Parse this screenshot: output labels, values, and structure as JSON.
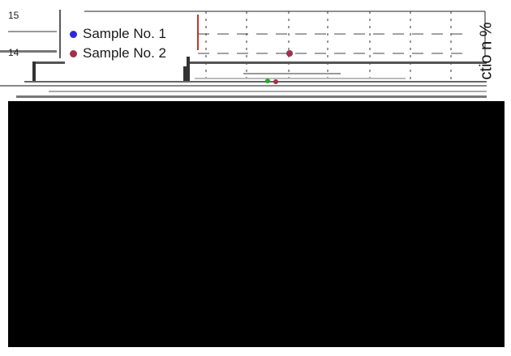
{
  "chart_data": {
    "type": "scatter",
    "title": "",
    "xlabel": "",
    "ylabel": "ctio n %",
    "y_ticks": [
      "15",
      "14"
    ],
    "grid": true,
    "legend_position": "top-left",
    "series": [
      {
        "name": "Sample No. 1",
        "color": "#2a2ad6"
      },
      {
        "name": "Sample No. 2",
        "color": "#a23048"
      }
    ]
  },
  "overlay": {
    "color": "#000000"
  }
}
